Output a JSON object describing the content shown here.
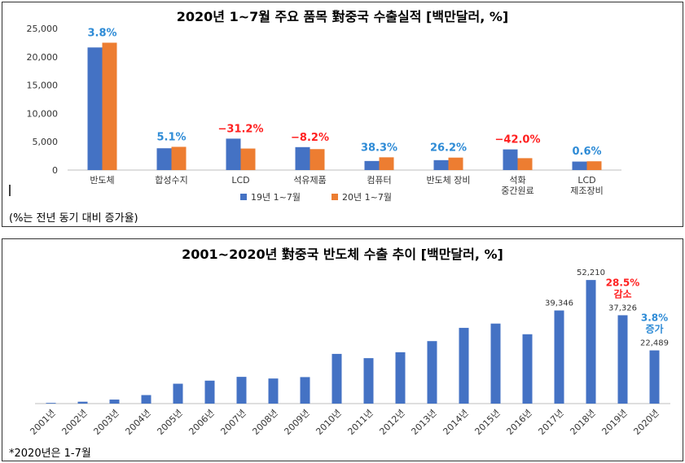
{
  "chart_data": [
    {
      "type": "bar",
      "title": "2020년 1~7월 주요 품목 對중국 수출실적 [백만달러, %]",
      "categories": [
        "반도체",
        "합성수지",
        "LCD",
        "석유제품",
        "컴퓨터",
        "반도체 장비",
        "석화\n중간원료",
        "LCD\n제조장비"
      ],
      "series": [
        {
          "name": "19년 1~7월",
          "color": "#4472C4",
          "values": [
            21650,
            3850,
            5550,
            4050,
            1600,
            1750,
            3650,
            1500
          ]
        },
        {
          "name": "20년 1~7월",
          "color": "#ED7D31",
          "values": [
            22489,
            4100,
            3800,
            3700,
            2250,
            2200,
            2100,
            1550
          ]
        }
      ],
      "annotations": [
        "3.8%",
        "5.1%",
        "−31.2%",
        "−8.2%",
        "38.3%",
        "26.2%",
        "−42.0%",
        "0.6%"
      ],
      "annotation_colors": [
        "#2E8BD6",
        "#2E8BD6",
        "#FF2020",
        "#FF2020",
        "#2E8BD6",
        "#2E8BD6",
        "#FF2020",
        "#2E8BD6"
      ],
      "yticks": [
        "0",
        "5,000",
        "10,000",
        "15,000",
        "20,000",
        "25,000"
      ],
      "ylim": [
        0,
        25000
      ],
      "legend_position": "bottom",
      "note": "(%는 전년 동기 대비 증가율)"
    },
    {
      "type": "bar",
      "title": "2001~2020년 對중국 반도체 수출 추이 [백만달러, %]",
      "categories": [
        "2001년",
        "2002년",
        "2003년",
        "2004년",
        "2005년",
        "2006년",
        "2007년",
        "2008년",
        "2009년",
        "2010년",
        "2011년",
        "2012년",
        "2013년",
        "2014년",
        "2015년",
        "2016년",
        "2017년",
        "2018년",
        "2019년",
        "2020년"
      ],
      "color": "#4472C4",
      "values": [
        300,
        800,
        1700,
        3600,
        8400,
        9700,
        11300,
        10600,
        11200,
        21000,
        19200,
        21700,
        26400,
        32000,
        33800,
        29300,
        39346,
        52210,
        37326,
        22489
      ],
      "data_labels": {
        "16": "39,346",
        "17": "52,210",
        "18": "37,326",
        "19": "22,489"
      },
      "annotations": [
        {
          "index": 18,
          "lines": [
            "28.5%",
            "감소"
          ],
          "color": "#FF2020"
        },
        {
          "index": 19,
          "lines": [
            "3.8%",
            "증가"
          ],
          "color": "#2E8BD6"
        }
      ],
      "ylim": [
        0,
        55000
      ],
      "note": "*2020년은 1-7월"
    }
  ]
}
